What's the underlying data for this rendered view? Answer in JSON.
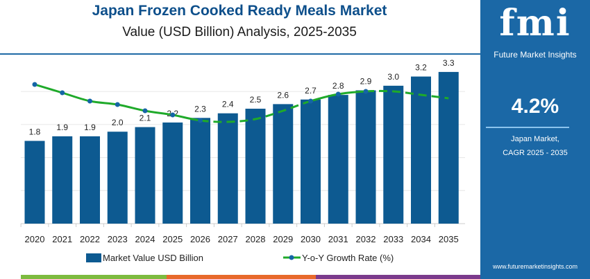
{
  "header": {
    "title": "Japan Frozen Cooked Ready Meals Market",
    "subtitle": "Value (USD Billion) Analysis, 2025-2035"
  },
  "panel": {
    "logo_text": "fmi",
    "logo_subtitle": "Future Market Insights",
    "cagr_value": "4.2%",
    "cagr_label_1": "Japan Market,",
    "cagr_label_2": "CAGR 2025 - 2035",
    "url": "www.futuremarketinsights.com"
  },
  "colors": {
    "bar": "#0d5a91",
    "line": "#1faa2a",
    "marker": "#1565a6",
    "title": "#0d4f8b",
    "panel": "#1b68a6",
    "bottom": [
      "#7dbb3f",
      "#e8692b",
      "#7b3a8c"
    ]
  },
  "chart_data": {
    "type": "bar+line",
    "categories": [
      "2020",
      "2021",
      "2022",
      "2023",
      "2024",
      "2025",
      "2026",
      "2027",
      "2028",
      "2029",
      "2030",
      "2031",
      "2032",
      "2033",
      "2034",
      "2035"
    ],
    "series": [
      {
        "name": "Market Value USD Billion",
        "type": "bar",
        "values": [
          1.8,
          1.9,
          1.9,
          2.0,
          2.1,
          2.2,
          2.3,
          2.4,
          2.5,
          2.6,
          2.7,
          2.8,
          2.9,
          3.0,
          3.2,
          3.3
        ],
        "labels": [
          "1.8",
          "1.9",
          "1.9",
          "2.0",
          "2.1",
          "2.2",
          "2.3",
          "2.4",
          "2.5",
          "2.6",
          "2.7",
          "2.8",
          "2.9",
          "3.0",
          "3.2",
          "3.3"
        ]
      },
      {
        "name": "Y-o-Y Growth Rate (%)",
        "type": "line",
        "values": [
          3.9,
          3.3,
          2.7,
          2.45,
          2.0,
          1.7,
          1.3,
          1.2,
          1.4,
          2.0,
          2.7,
          3.2,
          3.4,
          3.4,
          3.15,
          2.9
        ]
      }
    ],
    "ylim": [
      0,
      3.6
    ],
    "grid": true,
    "legend": "bottom"
  }
}
